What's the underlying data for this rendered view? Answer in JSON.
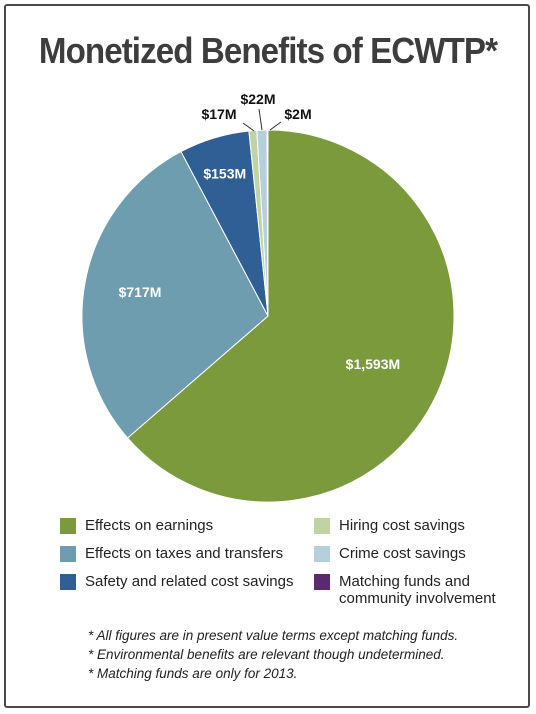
{
  "chart_data": {
    "type": "pie",
    "title": "Monetized Benefits of ECWTP*",
    "slices": [
      {
        "label": "Effects on earnings",
        "value": 1593,
        "value_label": "$1,593M",
        "color": "#7a9a3c"
      },
      {
        "label": "Effects on taxes and transfers",
        "value": 717,
        "value_label": "$717M",
        "color": "#6f9db0"
      },
      {
        "label": "Safety and related cost savings",
        "value": 153,
        "value_label": "$153M",
        "color": "#2f5f95"
      },
      {
        "label": "Hiring cost savings",
        "value": 17,
        "value_label": "$17M",
        "color": "#bfd3a3"
      },
      {
        "label": "Crime cost savings",
        "value": 22,
        "value_label": "$22M",
        "color": "#b6cfdc"
      },
      {
        "label": "Matching funds and community involvement",
        "value": 2,
        "value_label": "$2M",
        "color": "#5b2a6e"
      }
    ],
    "legend_placement": "bottom"
  },
  "legend": {
    "items": [
      {
        "label": "Effects on earnings",
        "color": "#7a9a3c"
      },
      {
        "label": "Hiring cost savings",
        "color": "#bfd3a3"
      },
      {
        "label": "Effects on taxes and transfers",
        "color": "#6f9db0"
      },
      {
        "label": "Crime cost savings",
        "color": "#b6cfdc"
      },
      {
        "label": "Safety and related cost savings",
        "color": "#2f5f95"
      },
      {
        "label": "Matching funds and community involvement",
        "color": "#5b2a6e"
      }
    ]
  },
  "notes": [
    "*  All figures are in present value terms except matching funds.",
    "*  Environmental benefits are relevant though undetermined.",
    "*  Matching funds are only for 2013."
  ]
}
